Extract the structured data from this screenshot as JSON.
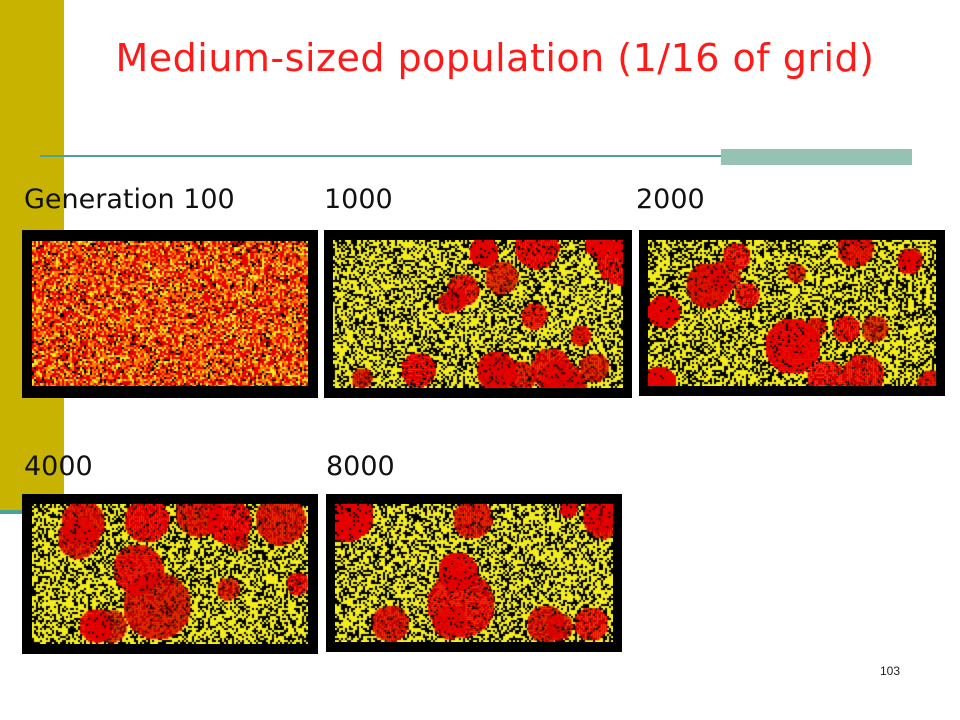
{
  "slide": {
    "title": "Medium-sized population (1/16 of grid)",
    "page_number": "103"
  },
  "panels": [
    {
      "label": "Generation 100",
      "generation": 100,
      "pattern": "noise"
    },
    {
      "label": "1000",
      "generation": 1000,
      "pattern": "clusters"
    },
    {
      "label": "2000",
      "generation": 2000,
      "pattern": "clusters"
    },
    {
      "label": "4000",
      "generation": 4000,
      "pattern": "clusters"
    },
    {
      "label": "8000",
      "generation": 8000,
      "pattern": "clusters"
    }
  ],
  "colors": {
    "accent_bar": "#c8b400",
    "title": "#ff1a1a",
    "rule": "#4aa39a",
    "rule_block": "#96c2b4",
    "cell_red": "#e60000",
    "cell_yellow": "#f2ec1c",
    "cell_black": "#000000",
    "cell_orange": "#ff7a00"
  }
}
